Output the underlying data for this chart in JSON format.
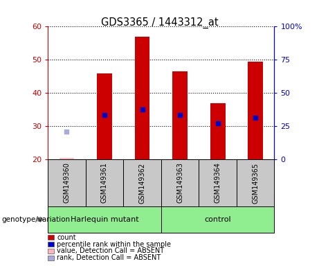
{
  "title": "GDS3365 / 1443312_at",
  "samples": [
    "GSM149360",
    "GSM149361",
    "GSM149362",
    "GSM149363",
    "GSM149364",
    "GSM149365"
  ],
  "counts": [
    20.5,
    46,
    57,
    46.5,
    37,
    49.5
  ],
  "percentile_ranks": [
    null,
    33.5,
    35,
    33.5,
    31,
    32.5
  ],
  "absent_value": [
    20.5,
    null,
    null,
    null,
    null,
    null
  ],
  "absent_rank": [
    28.5,
    null,
    null,
    null,
    null,
    null
  ],
  "ylim_left": [
    20,
    60
  ],
  "ylim_right": [
    0,
    100
  ],
  "yticks_left": [
    20,
    30,
    40,
    50,
    60
  ],
  "yticks_right": [
    0,
    25,
    50,
    75,
    100
  ],
  "ytick_labels_right": [
    "0",
    "25",
    "50",
    "75",
    "100%"
  ],
  "group1_label": "Harlequin mutant",
  "group2_label": "control",
  "group1_color": "#90EE90",
  "group2_color": "#90EE90",
  "bar_color": "#CC0000",
  "blue_marker_color": "#0000CC",
  "absent_val_color": "#FFB6C1",
  "absent_rank_color": "#AAAADD",
  "bar_width": 0.4,
  "bg_color": "#C8C8C8",
  "plot_bg": "#FFFFFF",
  "left_axis_color": "#CC0000",
  "right_axis_color": "#0000CC",
  "genotype_label": "genotype/variation",
  "legend_items": [
    {
      "label": "count",
      "color": "#CC0000"
    },
    {
      "label": "percentile rank within the sample",
      "color": "#0000CC"
    },
    {
      "label": "value, Detection Call = ABSENT",
      "color": "#FFB6C1"
    },
    {
      "label": "rank, Detection Call = ABSENT",
      "color": "#AAAADD"
    }
  ]
}
